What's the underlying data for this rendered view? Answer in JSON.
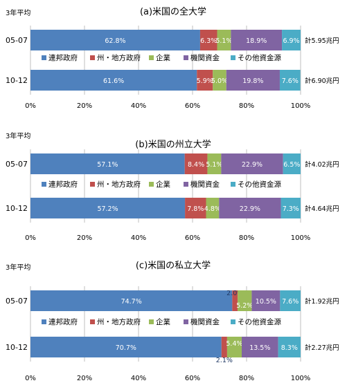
{
  "colors": {
    "series": [
      "#4f81bd",
      "#c0504d",
      "#9bbb59",
      "#8064a2",
      "#4bacc6"
    ],
    "grid": "#bfbfbf",
    "text": "#000000",
    "bar_label": "#ffffff"
  },
  "chart_data": [
    {
      "type": "bar",
      "orientation": "horizontal",
      "stacked": true,
      "title": "(a)米国の全大学",
      "group_label": "3年平均",
      "categories": [
        "05-07",
        "10-12"
      ],
      "xlim": [
        0,
        100
      ],
      "x_ticks": [
        "0%",
        "20%",
        "40%",
        "60%",
        "80%",
        "100%"
      ],
      "grid": true,
      "legend_position": "between-bars",
      "series": [
        {
          "name": "連邦政府",
          "values": [
            62.8,
            61.6
          ],
          "labels": [
            "62.8%",
            "61.6%"
          ]
        },
        {
          "name": "州・地方政府",
          "values": [
            6.3,
            5.9
          ],
          "labels": [
            "6.3%",
            "5.9%"
          ]
        },
        {
          "name": "企業",
          "values": [
            5.1,
            5.0
          ],
          "labels": [
            "5.1%",
            "5.0%"
          ]
        },
        {
          "name": "機関資金",
          "values": [
            18.9,
            19.8
          ],
          "labels": [
            "18.9%",
            "19.8%"
          ]
        },
        {
          "name": "その他資金源",
          "values": [
            6.9,
            7.6
          ],
          "labels": [
            "6.9%",
            "7.6%"
          ]
        }
      ],
      "totals": [
        "計5.95兆円",
        "計6.90兆円"
      ]
    },
    {
      "type": "bar",
      "orientation": "horizontal",
      "stacked": true,
      "title": "(b)米国の州立大学",
      "group_label": "3年平均",
      "categories": [
        "05-07",
        "10-12"
      ],
      "xlim": [
        0,
        100
      ],
      "x_ticks": [
        "0%",
        "20%",
        "40%",
        "60%",
        "80%",
        "100%"
      ],
      "grid": true,
      "legend_position": "between-bars",
      "series": [
        {
          "name": "連邦政府",
          "values": [
            57.1,
            57.2
          ],
          "labels": [
            "57.1%",
            "57.2%"
          ]
        },
        {
          "name": "州・地方政府",
          "values": [
            8.4,
            7.8
          ],
          "labels": [
            "8.4%",
            "7.8%"
          ]
        },
        {
          "name": "企業",
          "values": [
            5.1,
            4.8
          ],
          "labels": [
            "5.1%",
            "4.8%"
          ]
        },
        {
          "name": "機関資金",
          "values": [
            22.9,
            22.9
          ],
          "labels": [
            "22.9%",
            "22.9%"
          ]
        },
        {
          "name": "その他資金源",
          "values": [
            6.5,
            7.3
          ],
          "labels": [
            "6.5%",
            "7.3%"
          ]
        }
      ],
      "totals": [
        "計4.02兆円",
        "計4.64兆円"
      ]
    },
    {
      "type": "bar",
      "orientation": "horizontal",
      "stacked": true,
      "title": "(c)米国の私立大学",
      "group_label": "3年平均",
      "categories": [
        "05-07",
        "10-12"
      ],
      "xlim": [
        0,
        100
      ],
      "x_ticks": [
        "0%",
        "20%",
        "40%",
        "60%",
        "80%",
        "100%"
      ],
      "grid": true,
      "legend_position": "between-bars",
      "series": [
        {
          "name": "連邦政府",
          "values": [
            74.7,
            70.7
          ],
          "labels": [
            "74.7%",
            "70.7%"
          ]
        },
        {
          "name": "州・地方政府",
          "values": [
            2.0,
            2.1
          ],
          "labels": [
            "2.0%",
            "2.1%"
          ]
        },
        {
          "name": "企業",
          "values": [
            5.2,
            5.4
          ],
          "labels": [
            "5.2%",
            "5.4%"
          ]
        },
        {
          "name": "機関資金",
          "values": [
            10.5,
            13.5
          ],
          "labels": [
            "10.5%",
            "13.5%"
          ]
        },
        {
          "name": "その他資金源",
          "values": [
            7.6,
            8.3
          ],
          "labels": [
            "7.6%",
            "8.3%"
          ]
        }
      ],
      "totals": [
        "計1.92兆円",
        "計2.27兆円"
      ]
    }
  ]
}
